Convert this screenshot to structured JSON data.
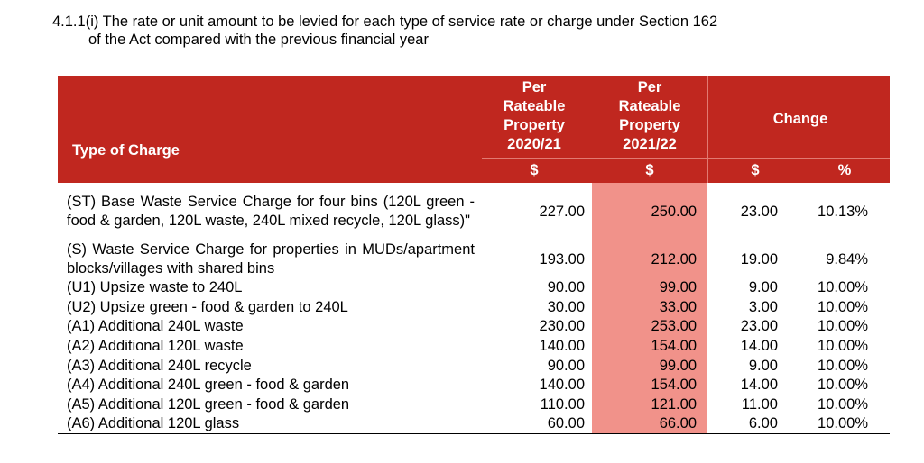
{
  "heading": {
    "line1": "4.1.1(i) The rate or unit amount to be levied for each type of service rate or charge under Section 162",
    "line2": "of the Act compared with the previous financial year"
  },
  "table": {
    "type_header": "Type of Charge",
    "col1_header": [
      "Per",
      "Rateable",
      "Property",
      "2020/21"
    ],
    "col2_header": [
      "Per",
      "Rateable",
      "Property",
      "2021/22"
    ],
    "change_header": "Change",
    "units": [
      "$",
      "$",
      "$",
      "%"
    ],
    "rows": [
      {
        "desc": "(ST) Base Waste Service Charge for four bins (120L green - food & garden, 120L waste, 240L mixed recycle, 120L glass)\"",
        "v2020": "227.00",
        "v2021": "250.00",
        "change": "23.00",
        "pct": "10.13%"
      },
      {
        "desc": "(S) Waste Service Charge for properties in MUDs/apartment blocks/villages with shared bins",
        "v2020": "193.00",
        "v2021": "212.00",
        "change": "19.00",
        "pct": "9.84%"
      },
      {
        "desc": "(U1) Upsize waste to 240L",
        "v2020": "90.00",
        "v2021": "99.00",
        "change": "9.00",
        "pct": "10.00%"
      },
      {
        "desc": "(U2) Upsize green - food & garden to 240L",
        "v2020": "30.00",
        "v2021": "33.00",
        "change": "3.00",
        "pct": "10.00%"
      },
      {
        "desc": "(A1) Additional 240L waste",
        "v2020": "230.00",
        "v2021": "253.00",
        "change": "23.00",
        "pct": "10.00%"
      },
      {
        "desc": "(A2) Additional 120L waste",
        "v2020": "140.00",
        "v2021": "154.00",
        "change": "14.00",
        "pct": "10.00%"
      },
      {
        "desc": "(A3) Additional 240L recycle",
        "v2020": "90.00",
        "v2021": "99.00",
        "change": "9.00",
        "pct": "10.00%"
      },
      {
        "desc": "(A4) Additional 240L green - food & garden",
        "v2020": "140.00",
        "v2021": "154.00",
        "change": "14.00",
        "pct": "10.00%"
      },
      {
        "desc": "(A5) Additional 120L green - food & garden",
        "v2020": "110.00",
        "v2021": "121.00",
        "change": "11.00",
        "pct": "10.00%"
      },
      {
        "desc": "(A6) Additional 120L glass",
        "v2020": "60.00",
        "v2021": "66.00",
        "change": "6.00",
        "pct": "10.00%"
      }
    ]
  },
  "colors": {
    "header_red": "#c0271f",
    "highlight_pink": "#f1928a"
  }
}
